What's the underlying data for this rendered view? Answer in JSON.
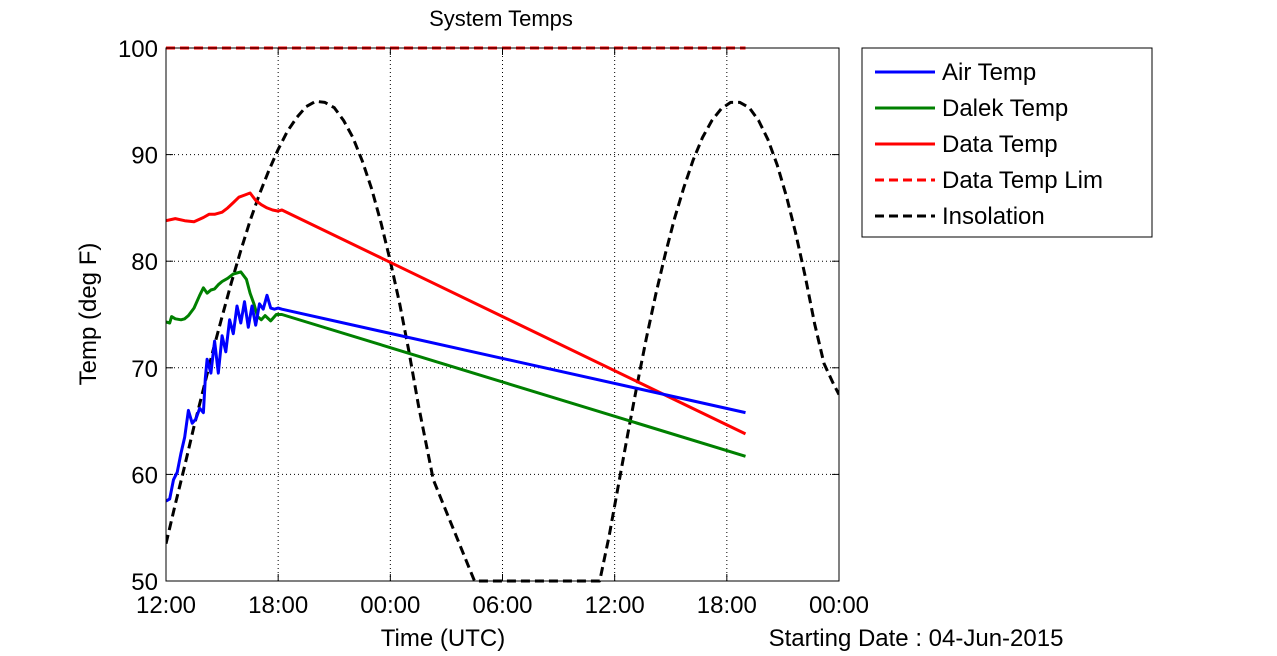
{
  "chart_data": {
    "type": "line",
    "title": "System Temps",
    "xlabel": "Time (UTC)",
    "ylabel": "Temp (deg F)",
    "date_note": "Starting Date : 04-Jun-2015",
    "xlim": [
      0,
      36
    ],
    "ylim": [
      50,
      100
    ],
    "x_unit": "hours since 04-Jun-2015 12:00 UTC",
    "xticks": [
      0,
      6,
      12,
      18,
      24,
      30,
      36
    ],
    "xtick_labels": [
      "12:00",
      "18:00",
      "00:00",
      "06:00",
      "12:00",
      "18:00",
      "00:00"
    ],
    "yticks": [
      50,
      60,
      70,
      80,
      90,
      100
    ],
    "ytick_labels": [
      "50",
      "60",
      "70",
      "80",
      "90",
      "100"
    ],
    "grid": true,
    "legend_position": "outside-right-top",
    "series": [
      {
        "name": "Air Temp",
        "color": "#0000ff",
        "style": "solid",
        "x": [
          0,
          0.2,
          0.4,
          0.6,
          0.8,
          1.0,
          1.2,
          1.4,
          1.6,
          1.8,
          2.0,
          2.1,
          2.2,
          2.4,
          2.6,
          2.8,
          3.0,
          3.2,
          3.4,
          3.6,
          3.8,
          4.0,
          4.2,
          4.4,
          4.6,
          4.8,
          5.0,
          5.2,
          5.4,
          5.6,
          5.8,
          6.0,
          6.2,
          31.0
        ],
        "y": [
          57.5,
          57.7,
          59.5,
          60.2,
          62.0,
          63.5,
          66.0,
          64.8,
          65.2,
          66.2,
          65.8,
          69.0,
          70.8,
          69.5,
          72.5,
          69.5,
          73.0,
          71.5,
          74.5,
          73.2,
          75.8,
          74.2,
          76.2,
          73.8,
          75.8,
          74.0,
          76.0,
          75.5,
          76.8,
          75.6,
          75.5,
          75.6,
          75.5,
          65.8
        ]
      },
      {
        "name": "Dalek Temp",
        "color": "#008000",
        "style": "solid",
        "x": [
          0,
          0.2,
          0.3,
          0.5,
          0.8,
          1.0,
          1.2,
          1.5,
          1.8,
          2.0,
          2.2,
          2.4,
          2.6,
          2.8,
          3.0,
          3.3,
          3.6,
          4.0,
          4.3,
          4.5,
          4.7,
          4.9,
          5.1,
          5.3,
          5.6,
          5.9,
          6.2,
          31.0
        ],
        "y": [
          74.3,
          74.2,
          74.8,
          74.6,
          74.5,
          74.6,
          74.9,
          75.6,
          76.8,
          77.5,
          77.0,
          77.3,
          77.4,
          77.8,
          78.1,
          78.4,
          78.8,
          79.0,
          78.3,
          77.0,
          76.0,
          74.8,
          74.5,
          74.9,
          74.4,
          75.0,
          75.0,
          61.7
        ]
      },
      {
        "name": "Data Temp",
        "color": "#ff0000",
        "style": "solid",
        "x": [
          0,
          0.5,
          1.0,
          1.5,
          2.0,
          2.3,
          2.6,
          3.0,
          3.3,
          3.6,
          3.9,
          4.2,
          4.5,
          4.8,
          5.1,
          5.4,
          5.7,
          6.0,
          6.2,
          31.0
        ],
        "y": [
          83.8,
          84.0,
          83.8,
          83.7,
          84.1,
          84.4,
          84.4,
          84.6,
          85.0,
          85.5,
          86.0,
          86.2,
          86.4,
          85.7,
          85.3,
          85.0,
          84.8,
          84.7,
          84.8,
          63.8
        ]
      },
      {
        "name": "Data Temp Lim",
        "color": "#ff0000",
        "style": "dashed",
        "x": [
          0,
          31.0
        ],
        "y": [
          100,
          100
        ]
      },
      {
        "name": "Insolation",
        "color": "#000000",
        "style": "dashed",
        "x": [
          0,
          0.5,
          1,
          1.5,
          2,
          2.5,
          3,
          3.5,
          4,
          4.5,
          5,
          5.5,
          6,
          6.5,
          7,
          7.5,
          8,
          8.5,
          9,
          9.5,
          10,
          10.5,
          11,
          11.5,
          12,
          12.5,
          13,
          13.5,
          14.3,
          16.5,
          18.5,
          23.2,
          23.7,
          24.2,
          24.7,
          25.2,
          25.7,
          26.2,
          26.7,
          27.2,
          27.7,
          28.2,
          28.7,
          29.2,
          29.7,
          30.2,
          30.7,
          31.2,
          31.7,
          32.2,
          32.7,
          33.2,
          33.7,
          34.2,
          34.7,
          35.2,
          35.7,
          36.0
        ],
        "y": [
          53.5,
          57.2,
          60.8,
          64.5,
          68.0,
          71.5,
          74.8,
          78.0,
          81.0,
          83.8,
          86.3,
          88.5,
          90.5,
          92.2,
          93.5,
          94.5,
          95.0,
          94.9,
          94.4,
          93.2,
          91.6,
          89.4,
          86.8,
          83.6,
          80.0,
          76.0,
          71.5,
          66.5,
          59.5,
          50.0,
          50.0,
          50.0,
          54.2,
          59.0,
          63.8,
          68.4,
          72.8,
          76.9,
          80.6,
          84.0,
          86.9,
          89.5,
          91.6,
          93.2,
          94.3,
          94.9,
          94.9,
          94.4,
          93.2,
          91.4,
          89.0,
          86.0,
          82.5,
          78.5,
          74.1,
          70.4,
          68.5,
          67.5
        ]
      }
    ]
  }
}
